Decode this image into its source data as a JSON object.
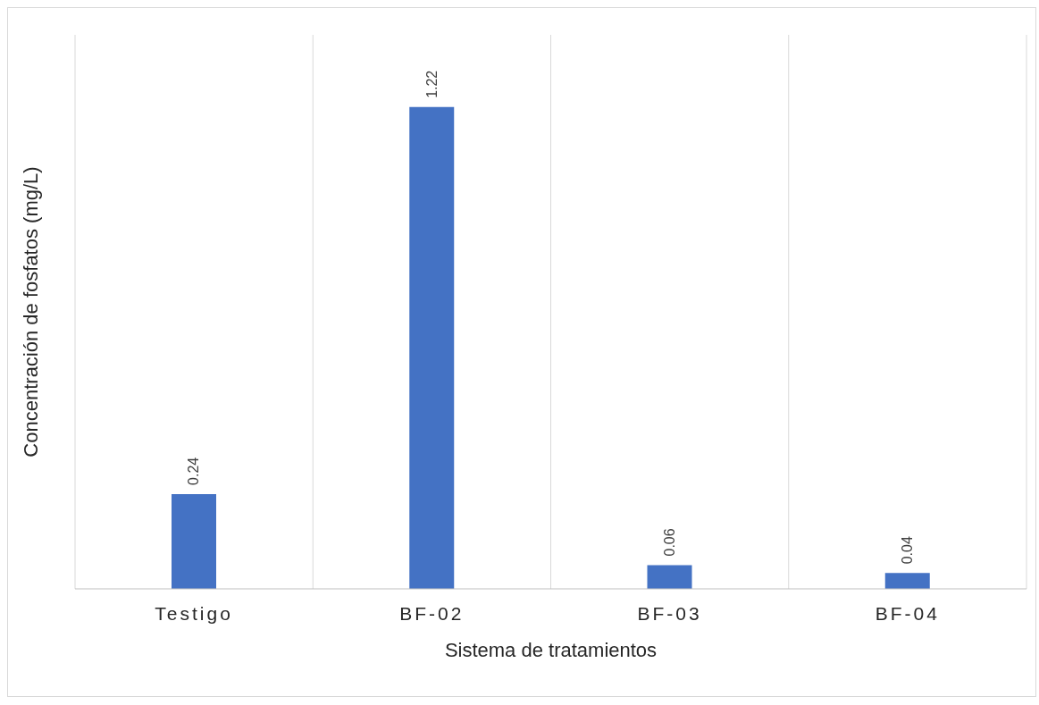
{
  "chart_data": {
    "type": "bar",
    "xlabel": "Sistema de tratamientos",
    "ylabel": "Concentración de fosfatos (mg/L)",
    "categories": [
      "Testigo",
      "BF-02",
      "BF-03",
      "BF-04"
    ],
    "values": [
      0.24,
      1.22,
      0.06,
      0.04
    ],
    "color": "#4472c4",
    "data_labels": true,
    "grid": "x"
  }
}
